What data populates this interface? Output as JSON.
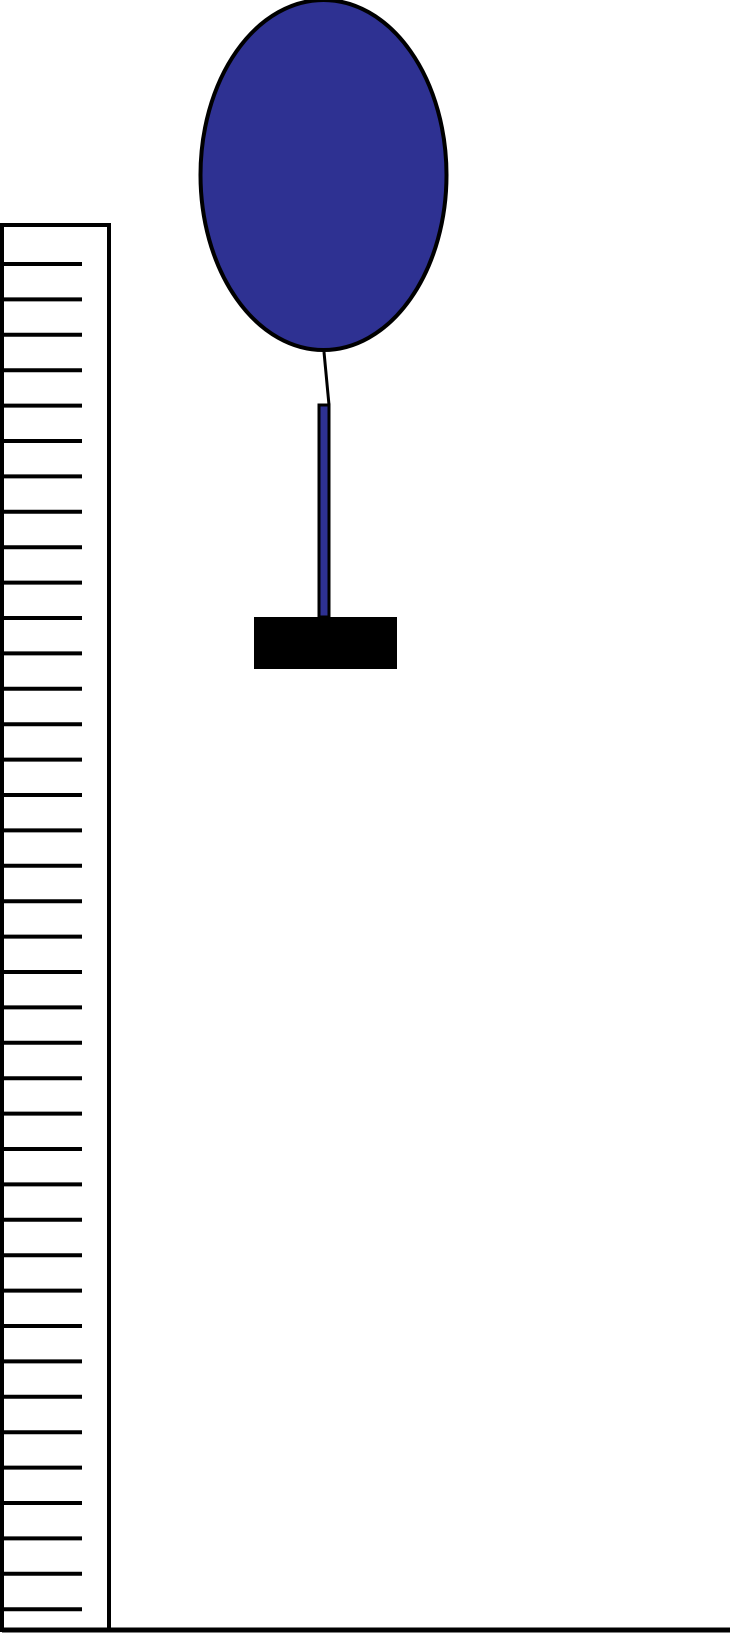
{
  "diagram": {
    "ruler": {
      "tick_count": 39
    },
    "balloon": {
      "fill_color": "#2e3192",
      "outline_color": "#000000"
    },
    "weight": {
      "fill_color": "#000000"
    },
    "ground": {
      "color": "#000000"
    }
  }
}
